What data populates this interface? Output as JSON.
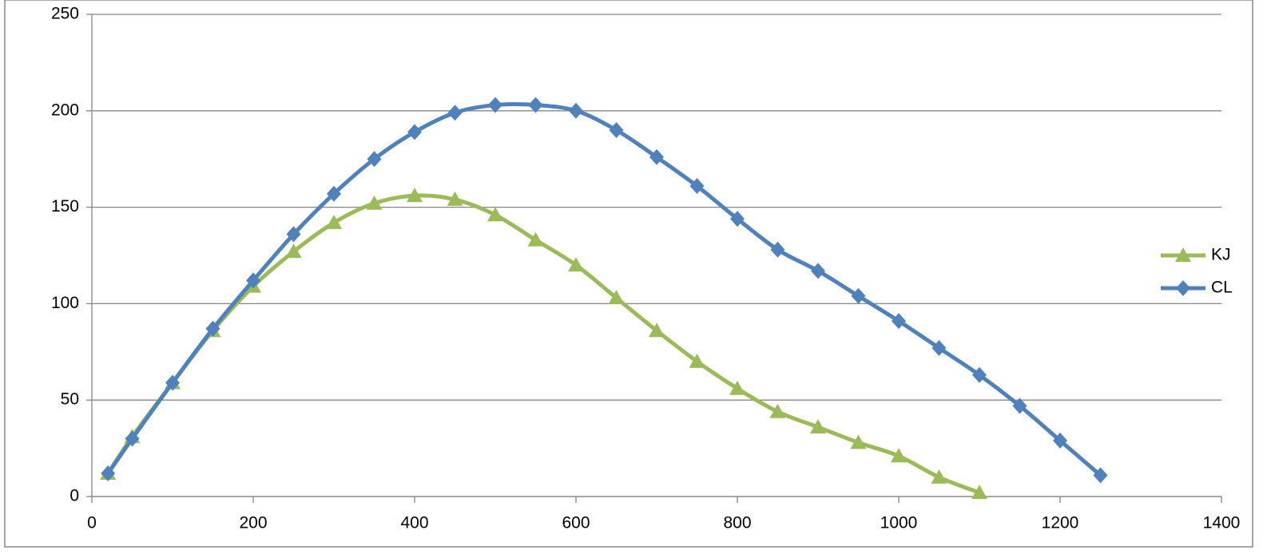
{
  "chart_data": {
    "type": "line",
    "xlim": [
      0,
      1400
    ],
    "xticks": [
      0,
      200,
      400,
      600,
      800,
      1000,
      1200,
      1400
    ],
    "ylim": [
      0,
      250
    ],
    "yticks": [
      0,
      50,
      100,
      150,
      200,
      250
    ],
    "grid": true,
    "legend": "right",
    "smooth": true,
    "series": [
      {
        "name": "KJ",
        "color": "#9bbb59",
        "marker": "triangle",
        "x": [
          20,
          50,
          100,
          150,
          200,
          250,
          300,
          350,
          400,
          450,
          500,
          550,
          600,
          650,
          700,
          750,
          800,
          850,
          900,
          950,
          1000,
          1050,
          1100
        ],
        "values": [
          12,
          31,
          59,
          86,
          109,
          127,
          142,
          152,
          156,
          154,
          146,
          133,
          120,
          103,
          86,
          70,
          56,
          44,
          36,
          28,
          21,
          10,
          2
        ]
      },
      {
        "name": "CL",
        "color": "#4f81bd",
        "marker": "diamond",
        "x": [
          20,
          50,
          100,
          150,
          200,
          250,
          300,
          350,
          400,
          450,
          500,
          550,
          600,
          650,
          700,
          750,
          800,
          850,
          900,
          950,
          1000,
          1050,
          1100,
          1150,
          1200,
          1250
        ],
        "values": [
          12,
          30,
          59,
          87,
          112,
          136,
          157,
          175,
          189,
          199,
          203,
          203,
          200,
          190,
          176,
          161,
          144,
          128,
          117,
          104,
          91,
          77,
          63,
          47,
          29,
          11
        ]
      }
    ]
  }
}
